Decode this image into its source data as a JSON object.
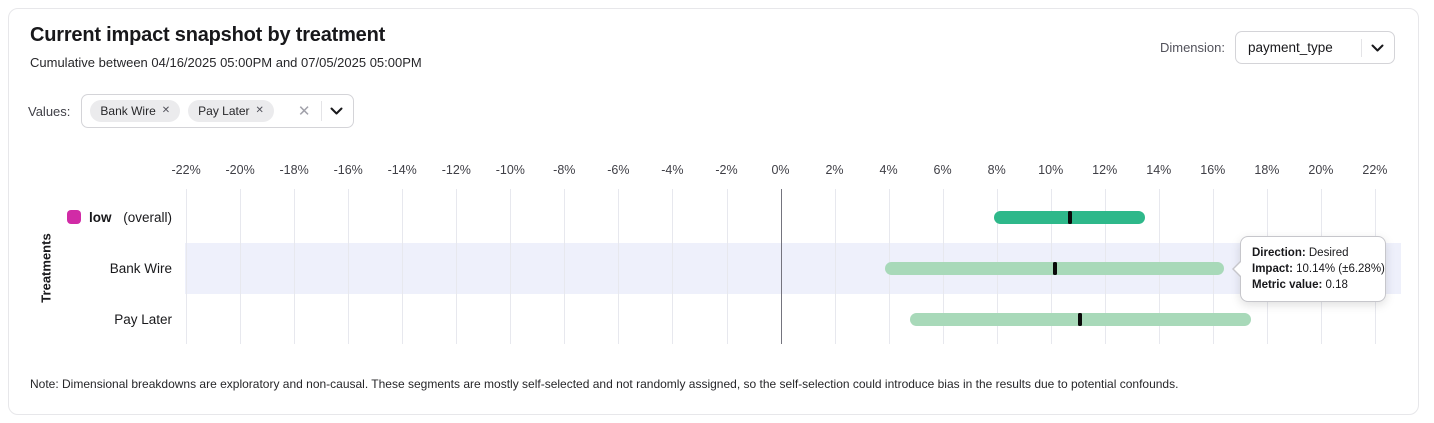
{
  "header": {
    "title": "Current impact snapshot by treatment",
    "subtitle": "Cumulative between 04/16/2025 05:00PM and 07/05/2025 05:00PM",
    "dimension_label": "Dimension:",
    "dimension_value": "payment_type"
  },
  "filters": {
    "values_label": "Values:",
    "chips": [
      "Bank Wire",
      "Pay Later"
    ]
  },
  "chart_data": {
    "type": "bar",
    "orientation": "horizontal-interval",
    "title": "Current impact snapshot by treatment",
    "ylabel": "Treatments",
    "x_axis_unit": "%",
    "x_range": [
      -22,
      22
    ],
    "grid": true,
    "x_tick_labels": [
      "-22%",
      "-20%",
      "-18%",
      "-16%",
      "-14%",
      "-12%",
      "-10%",
      "-8%",
      "-6%",
      "-4%",
      "-2%",
      "0%",
      "2%",
      "4%",
      "6%",
      "8%",
      "10%",
      "12%",
      "14%",
      "16%",
      "18%",
      "20%",
      "22%"
    ],
    "highlight_band_color": "#eef0fb",
    "marker_color": "#0a0a0a",
    "rows": [
      {
        "label": "low",
        "label_suffix": "(overall)",
        "legend_swatch_color": "#d12ba6",
        "bar_color": "#2eb88a",
        "impact_pct": 10.7,
        "ci_low_pct": 7.9,
        "ci_high_pct": 13.5,
        "highlighted": false
      },
      {
        "label": "Bank Wire",
        "bar_color": "#a8d9b9",
        "impact_pct": 10.14,
        "ci_low_pct": 3.86,
        "ci_high_pct": 16.42,
        "highlighted": true,
        "direction": "Desired",
        "metric_value": 0.18
      },
      {
        "label": "Pay Later",
        "bar_color": "#a8d9b9",
        "impact_pct": 11.1,
        "ci_low_pct": 4.8,
        "ci_high_pct": 17.4,
        "highlighted": false
      }
    ]
  },
  "tooltip": {
    "lines": [
      {
        "label": "Direction:",
        "value": "Desired"
      },
      {
        "label": "Impact:",
        "value": "10.14% (±6.28%)"
      },
      {
        "label": "Metric value:",
        "value": "0.18"
      }
    ]
  },
  "note": "Note: Dimensional breakdowns are exploratory and non-causal. These segments are mostly self-selected and not randomly assigned, so the self-selection could introduce bias in the results due to potential confounds."
}
